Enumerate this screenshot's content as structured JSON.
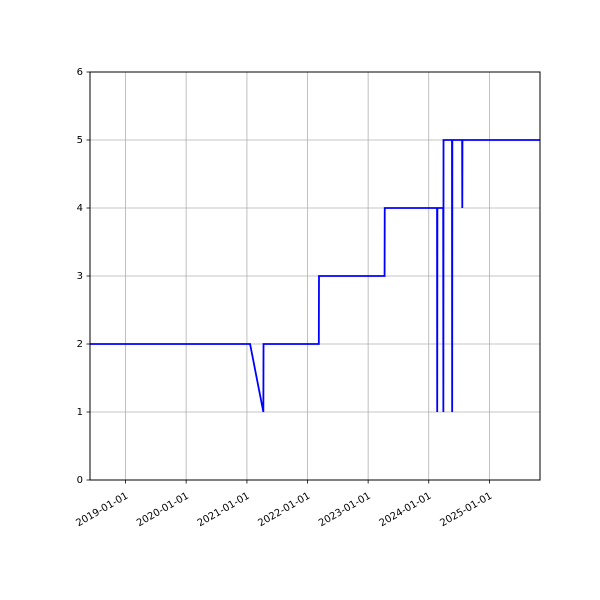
{
  "chart_data": {
    "type": "line",
    "title": "",
    "xlabel": "",
    "ylabel": "",
    "x_axis_type": "date",
    "xlim": [
      "2018-06-01",
      "2025-11-01"
    ],
    "ylim": [
      0,
      6
    ],
    "grid": true,
    "legend": "none",
    "x_ticks": [
      "2019-01-01",
      "2020-01-01",
      "2021-01-01",
      "2022-01-01",
      "2023-01-01",
      "2024-01-01",
      "2025-01-01"
    ],
    "x_tick_labels": [
      "2019-01-01",
      "2020-01-01",
      "2021-01-01",
      "2022-01-01",
      "2023-01-01",
      "2024-01-01",
      "2025-01-01"
    ],
    "y_ticks": [
      0,
      1,
      2,
      3,
      4,
      5,
      6
    ],
    "y_tick_labels": [
      "0",
      "1",
      "2",
      "3",
      "4",
      "5",
      "6"
    ],
    "series": [
      {
        "color": "#0000ff",
        "points": [
          [
            "2018-06-01",
            2
          ],
          [
            "2021-01-20",
            2
          ],
          [
            "2021-04-10",
            1
          ],
          [
            "2021-04-11",
            2
          ],
          [
            "2022-03-10",
            2
          ],
          [
            "2022-03-11",
            3
          ],
          [
            "2023-04-10",
            3
          ],
          [
            "2023-04-11",
            4
          ],
          [
            "2024-02-20",
            4
          ],
          [
            "2024-02-21",
            1
          ],
          [
            "2024-02-22",
            4
          ],
          [
            "2024-03-28",
            4
          ],
          [
            "2024-03-29",
            1
          ],
          [
            "2024-03-30",
            5
          ],
          [
            "2024-05-20",
            5
          ],
          [
            "2024-05-21",
            1
          ],
          [
            "2024-05-22",
            5
          ],
          [
            "2024-07-20",
            5
          ],
          [
            "2024-07-21",
            4
          ],
          [
            "2024-07-22",
            5
          ],
          [
            "2025-11-01",
            5
          ]
        ]
      }
    ]
  }
}
